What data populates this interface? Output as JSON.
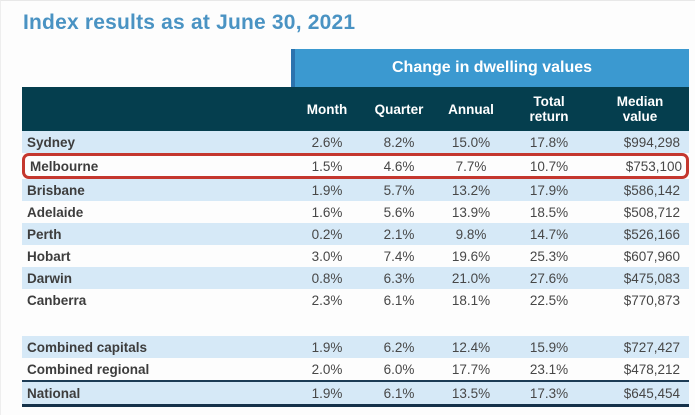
{
  "colors": {
    "title_blue": "#4a93c3",
    "banner_blue": "#3b99d0",
    "banner_edge_blue": "#2c73ae",
    "header_dark_teal": "#053e4e",
    "row_stripe_blue": "#d6e9f7",
    "highlight_red": "#c4372e",
    "navy_rule": "#1d3c55",
    "text_gray": "#3d3d3d"
  },
  "chart_data": {
    "type": "table",
    "title": "Index results as at June 30, 2021",
    "group_header": "Change in dwelling values",
    "columns": [
      "Month",
      "Quarter",
      "Annual",
      "Total return",
      "Median value"
    ],
    "rows": [
      {
        "name": "Sydney",
        "month": "2.6%",
        "quarter": "8.2%",
        "annual": "15.0%",
        "total_return": "17.8%",
        "median_value": "$994,298"
      },
      {
        "name": "Melbourne",
        "month": "1.5%",
        "quarter": "4.6%",
        "annual": "7.7%",
        "total_return": "10.7%",
        "median_value": "$753,100"
      },
      {
        "name": "Brisbane",
        "month": "1.9%",
        "quarter": "5.7%",
        "annual": "13.2%",
        "total_return": "17.9%",
        "median_value": "$586,142"
      },
      {
        "name": "Adelaide",
        "month": "1.6%",
        "quarter": "5.6%",
        "annual": "13.9%",
        "total_return": "18.5%",
        "median_value": "$508,712"
      },
      {
        "name": "Perth",
        "month": "0.2%",
        "quarter": "2.1%",
        "annual": "9.8%",
        "total_return": "14.7%",
        "median_value": "$526,166"
      },
      {
        "name": "Hobart",
        "month": "3.0%",
        "quarter": "7.4%",
        "annual": "19.6%",
        "total_return": "25.3%",
        "median_value": "$607,960"
      },
      {
        "name": "Darwin",
        "month": "0.8%",
        "quarter": "6.3%",
        "annual": "21.0%",
        "total_return": "27.6%",
        "median_value": "$475,083"
      },
      {
        "name": "Canberra",
        "month": "2.3%",
        "quarter": "6.1%",
        "annual": "18.1%",
        "total_return": "22.5%",
        "median_value": "$770,873"
      },
      {
        "name": "Combined capitals",
        "month": "1.9%",
        "quarter": "6.2%",
        "annual": "12.4%",
        "total_return": "15.9%",
        "median_value": "$727,427"
      },
      {
        "name": "Combined regional",
        "month": "2.0%",
        "quarter": "6.0%",
        "annual": "17.7%",
        "total_return": "23.1%",
        "median_value": "$478,212"
      },
      {
        "name": "National",
        "month": "1.9%",
        "quarter": "6.1%",
        "annual": "13.5%",
        "total_return": "17.3%",
        "median_value": "$645,454"
      }
    ],
    "highlighted_row": "Melbourne",
    "layout": {
      "stripe_rows": [
        "Sydney",
        "Brisbane",
        "Perth",
        "Darwin",
        "Combined capitals",
        "National"
      ]
    }
  }
}
